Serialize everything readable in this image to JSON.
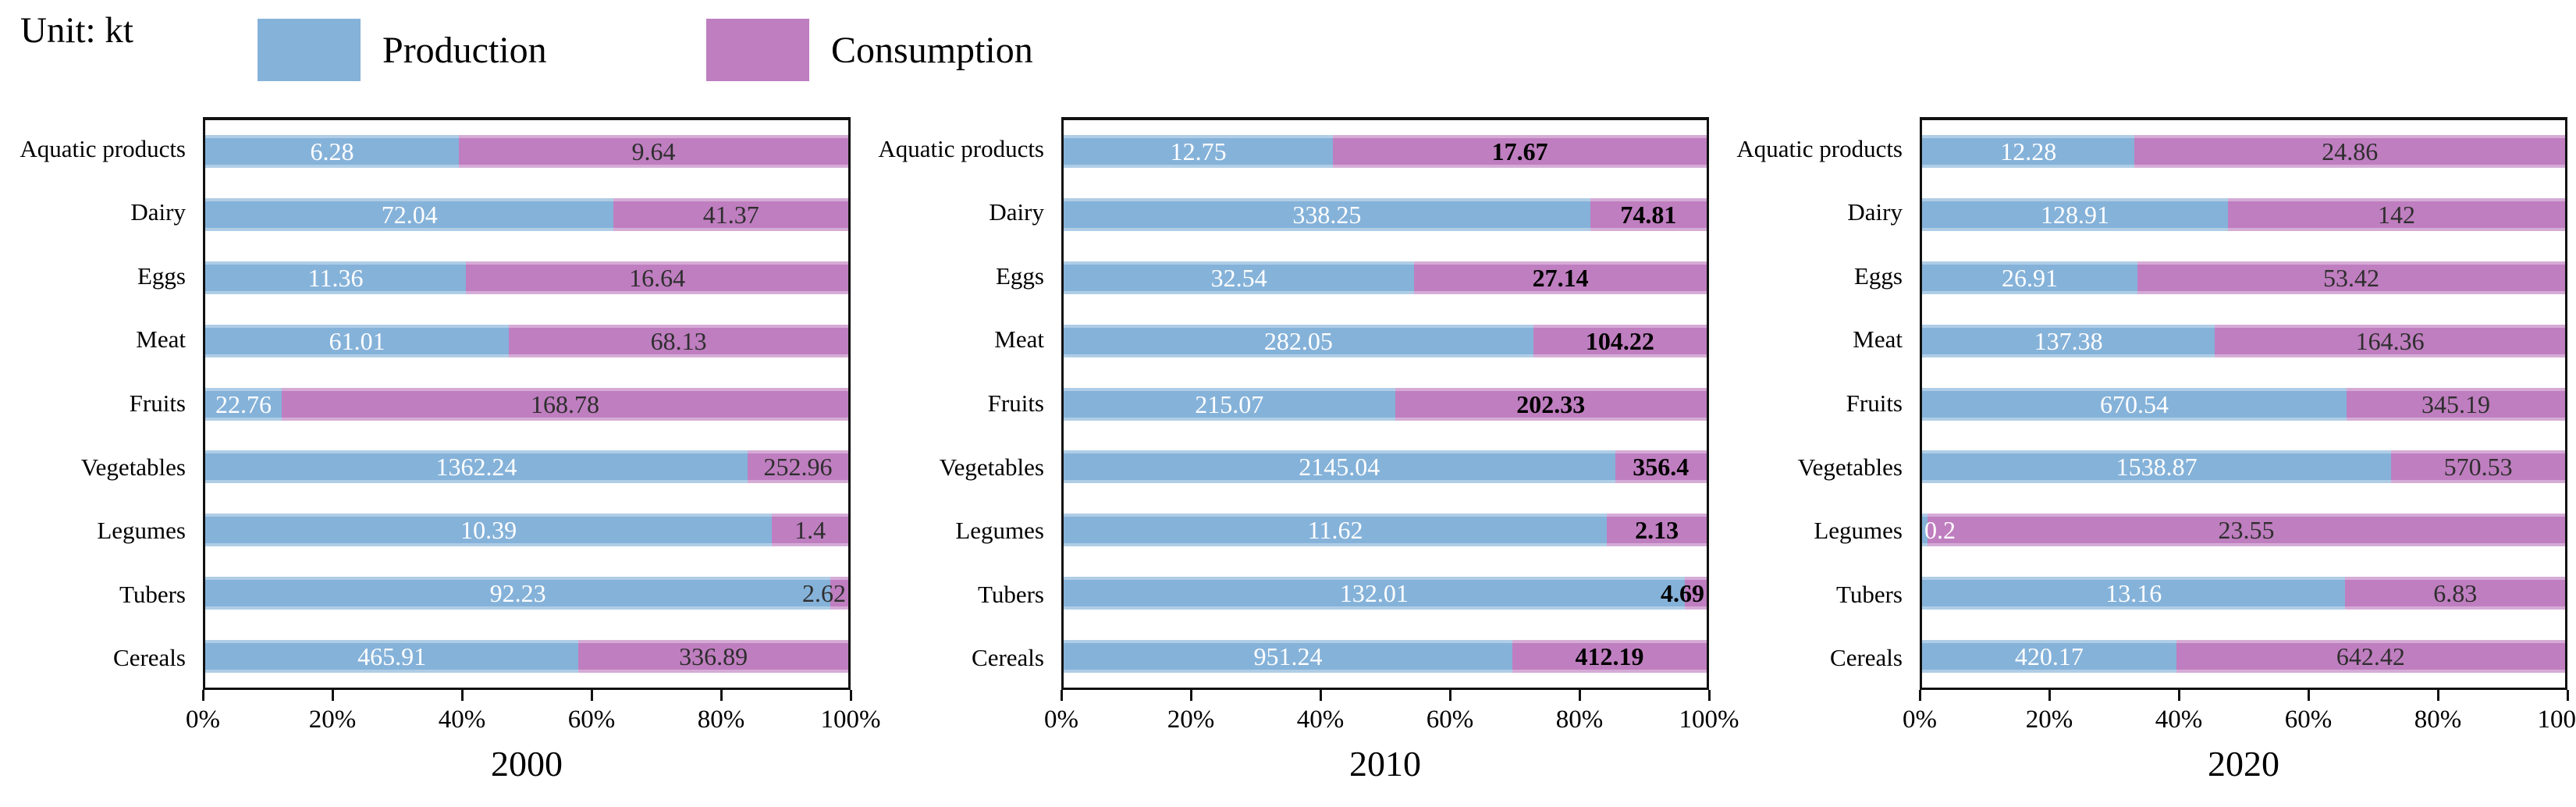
{
  "unit_label": "Unit: kt",
  "legend": [
    {
      "label": "Production",
      "color": "#85b2d9"
    },
    {
      "label": "Consumption",
      "color": "#bf7ec0"
    }
  ],
  "colors": {
    "production": "#85b2d9",
    "consumption": "#bf7ec0",
    "frame": "#111111",
    "consumption_label": "#2e2e2e",
    "production_label": "#ffffff"
  },
  "chart_data": [
    {
      "type": "bar",
      "stacked": true,
      "orientation": "horizontal",
      "title": "2000",
      "x_ticks": [
        "0%",
        "20%",
        "40%",
        "60%",
        "80%",
        "100%"
      ],
      "xlim": [
        0,
        100
      ],
      "categories": [
        "Aquatic products",
        "Dairy",
        "Eggs",
        "Meat",
        "Fruits",
        "Vegetables",
        "Legumes",
        "Tubers",
        "Cereals"
      ],
      "series": [
        {
          "name": "Production",
          "values": [
            6.28,
            72.04,
            11.36,
            61.01,
            22.76,
            1362.24,
            10.39,
            92.23,
            465.91
          ]
        },
        {
          "name": "Consumption",
          "values": [
            9.64,
            41.37,
            16.64,
            68.13,
            168.78,
            252.96,
            1.4,
            2.62,
            336.89
          ]
        }
      ],
      "consumption_label_bold": false
    },
    {
      "type": "bar",
      "stacked": true,
      "orientation": "horizontal",
      "title": "2010",
      "x_ticks": [
        "0%",
        "20%",
        "40%",
        "60%",
        "80%",
        "100%"
      ],
      "xlim": [
        0,
        100
      ],
      "categories": [
        "Aquatic products",
        "Dairy",
        "Eggs",
        "Meat",
        "Fruits",
        "Vegetables",
        "Legumes",
        "Tubers",
        "Cereals"
      ],
      "series": [
        {
          "name": "Production",
          "values": [
            12.75,
            338.25,
            32.54,
            282.05,
            215.07,
            2145.04,
            11.62,
            132.01,
            951.24
          ]
        },
        {
          "name": "Consumption",
          "values": [
            17.67,
            74.81,
            27.14,
            104.22,
            202.33,
            356.4,
            2.13,
            4.69,
            412.19
          ]
        }
      ],
      "consumption_label_bold": true
    },
    {
      "type": "bar",
      "stacked": true,
      "orientation": "horizontal",
      "title": "2020",
      "x_ticks": [
        "0%",
        "20%",
        "40%",
        "60%",
        "80%",
        "100%"
      ],
      "xlim": [
        0,
        100
      ],
      "categories": [
        "Aquatic products",
        "Dairy",
        "Eggs",
        "Meat",
        "Fruits",
        "Vegetables",
        "Legumes",
        "Tubers",
        "Cereals"
      ],
      "series": [
        {
          "name": "Production",
          "values": [
            12.28,
            128.91,
            26.91,
            137.38,
            670.54,
            1538.87,
            0.2,
            13.16,
            420.17
          ]
        },
        {
          "name": "Consumption",
          "values": [
            24.86,
            142,
            53.42,
            164.36,
            345.19,
            570.53,
            23.55,
            6.83,
            642.42
          ]
        }
      ],
      "consumption_label_bold": false
    }
  ]
}
